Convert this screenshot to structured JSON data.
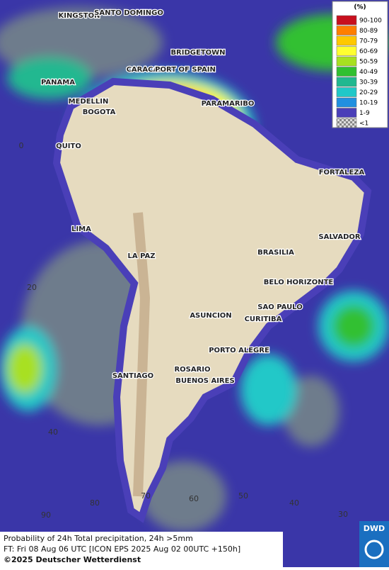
{
  "legend": {
    "title": "(%)",
    "items": [
      {
        "label": "90-100",
        "color": "#c8101e"
      },
      {
        "label": "80-89",
        "color": "#ff7f00"
      },
      {
        "label": "70-79",
        "color": "#ffc800"
      },
      {
        "label": "60-69",
        "color": "#ffff30"
      },
      {
        "label": "50-59",
        "color": "#a8e020"
      },
      {
        "label": "40-49",
        "color": "#30c030"
      },
      {
        "label": "30-39",
        "color": "#20b890"
      },
      {
        "label": "20-29",
        "color": "#20c8c8"
      },
      {
        "label": "10-19",
        "color": "#2090e0"
      },
      {
        "label": "1-9",
        "color": "#4a3fb8"
      },
      {
        "label": "<1",
        "color": "#9a9a9a"
      }
    ]
  },
  "cities": [
    "KINGSTON",
    "SANTO DOMINGO",
    "BRIDGETOWN",
    "CARACAS",
    "PORT OF SPAIN",
    "PANAMA",
    "MEDELLIN",
    "BOGOTA",
    "PARAMARIBO",
    "QUITO",
    "FORTALEZA",
    "LIMA",
    "SALVADOR",
    "BRASILIA",
    "LA PAZ",
    "BELO HORIZONTE",
    "SAO PAULO",
    "ASUNCION",
    "CURITIBA",
    "PORTO ALEGRE",
    "ROSARIO",
    "SANTIAGO",
    "BUENOS AIRES"
  ],
  "grid_labels": [
    "0",
    "20",
    "40",
    "90",
    "80",
    "70",
    "60",
    "50",
    "40",
    "30"
  ],
  "caption": {
    "line1": "Probability of 24h Total precipitation, 24h >5mm",
    "line2": "FT: Fri 08 Aug 06 UTC [ICON EPS 2025 Aug 02 00UTC +150h]",
    "line3": "©2025 Deutscher Wetterdienst"
  },
  "logo": "DWD"
}
